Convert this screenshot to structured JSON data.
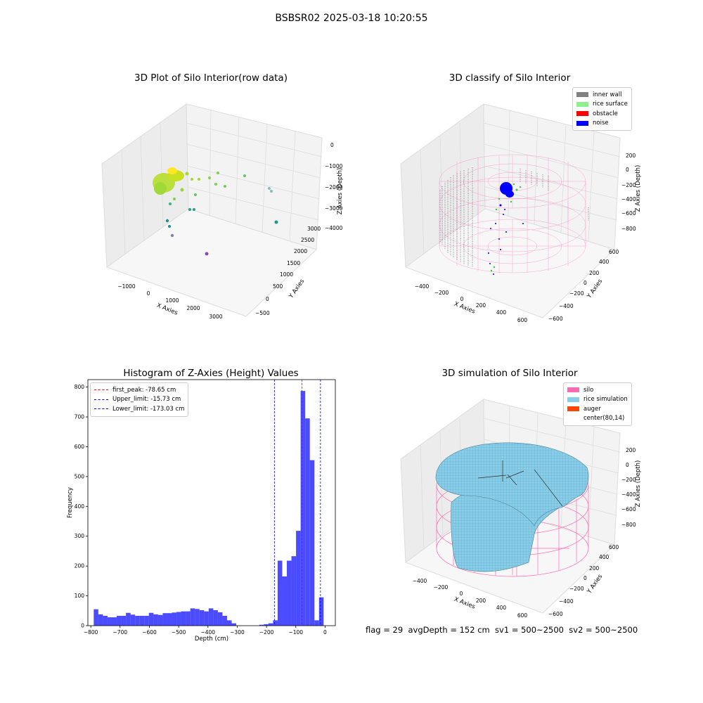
{
  "suptitle": "BSBSR02 2025-03-18 10:20:55",
  "panels": {
    "raw": {
      "title": "3D Plot of Silo Interior(row data)",
      "xlabel": "X Axies",
      "ylabel": "Y Axies",
      "zlabel": "Z Axies (Depth)",
      "x_ticks": [
        "−1000",
        "0",
        "1000",
        "2000",
        "3000"
      ],
      "y_ticks": [
        "−500",
        "0",
        "500",
        "1000",
        "1500",
        "2000",
        "2500",
        "3000"
      ],
      "z_ticks": [
        "0",
        "−1000",
        "−2000",
        "−3000",
        "−4000"
      ]
    },
    "classify": {
      "title": "3D classify of Silo Interior",
      "xlabel": "X Axies",
      "ylabel": "Y Axies",
      "zlabel": "Z Axies (Depth)",
      "x_ticks": [
        "−400",
        "−200",
        "0",
        "200",
        "400",
        "600"
      ],
      "y_ticks": [
        "−600",
        "−400",
        "−200",
        "0",
        "200",
        "400",
        "600"
      ],
      "z_ticks": [
        "200",
        "0",
        "−200",
        "−400",
        "−600",
        "−800"
      ],
      "legend": [
        {
          "label": "inner wall",
          "color": "#808080"
        },
        {
          "label": "rice surface",
          "color": "#90ee90"
        },
        {
          "label": "obstacle",
          "color": "#ff0000"
        },
        {
          "label": "noise",
          "color": "#0000ff"
        }
      ]
    },
    "simulation": {
      "title": "3D simulation of Silo Interior",
      "xlabel": "X Axies",
      "ylabel": "Y Axies",
      "zlabel": "Z Axies (Depth)",
      "x_ticks": [
        "−400",
        "−200",
        "0",
        "200",
        "400",
        "600"
      ],
      "y_ticks": [
        "−600",
        "−400",
        "−200",
        "0",
        "200",
        "400",
        "600"
      ],
      "z_ticks": [
        "200",
        "0",
        "−200",
        "−400",
        "−600",
        "−800"
      ],
      "legend": [
        {
          "label": "silo",
          "color": "#ff69b4"
        },
        {
          "label": "rice simulation",
          "color": "#87ceeb"
        },
        {
          "label": "auger",
          "color": "#ff4500"
        },
        {
          "label": "center(80,14)",
          "color": "#ffffff"
        }
      ]
    }
  },
  "chart_data": [
    {
      "type": "bar",
      "title": "Histogram of Z-Axies (Height) Values",
      "xlabel": "Depth (cm)",
      "ylabel": "Frequency",
      "xlim": [
        -810,
        35
      ],
      "ylim": [
        0,
        825
      ],
      "bar_color": "#0000ff",
      "x_ticks": [
        -800,
        -700,
        -600,
        -500,
        -400,
        -300,
        -200,
        -100,
        0
      ],
      "y_ticks": [
        0,
        100,
        200,
        300,
        400,
        500,
        600,
        700,
        800
      ],
      "bin_width": 15.7,
      "bin_edges_start": -790,
      "values": [
        55,
        38,
        33,
        28,
        28,
        33,
        33,
        43,
        37,
        33,
        33,
        33,
        43,
        38,
        36,
        42,
        42,
        44,
        46,
        48,
        48,
        58,
        56,
        52,
        48,
        58,
        52,
        45,
        33,
        18,
        8,
        0,
        0,
        0,
        0,
        0,
        3,
        5,
        8,
        18,
        218,
        165,
        218,
        233,
        318,
        787,
        695,
        555,
        18,
        95
      ],
      "lines": [
        {
          "label": "first_peak: -78.65 cm",
          "x": -78.65,
          "color": "#ff0000"
        },
        {
          "label": "Upper_limit: -15.73 cm",
          "x": -15.73,
          "color": "#0000ff"
        },
        {
          "label": "Lower_limit: -173.03 cm",
          "x": -173.03,
          "color": "#0000ff"
        }
      ]
    }
  ],
  "footer": "flag = 29  avgDepth = 152 cm  sv1 = 500~2500  sv2 = 500~2500"
}
